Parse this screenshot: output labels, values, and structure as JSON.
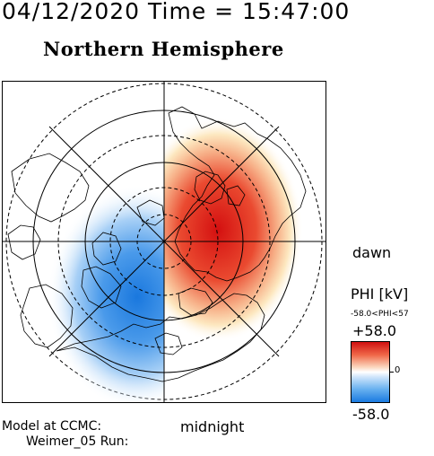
{
  "header": {
    "timestamp": "04/12/2020 Time = 15:47:00",
    "hemisphere": "Northern Hemisphere"
  },
  "map": {
    "dawn_label": "dawn",
    "midnight_label": "midnight",
    "potential": {
      "dawn_cell": "positive",
      "dusk_cell": "negative",
      "positive_color": "#e01818",
      "negative_color": "#1a7ae0"
    }
  },
  "footer": {
    "line1": "Model at CCMC:",
    "line2": "Weimer_05 Run:"
  },
  "colorbar": {
    "label": "PHI [kV]",
    "range_text": "-58.0<PHI<57",
    "max": "+58.0",
    "zero": "0",
    "min": "-58.0",
    "max_color": "#d01010",
    "mid_color": "#ffffff",
    "min_color": "#1a7ae0"
  }
}
